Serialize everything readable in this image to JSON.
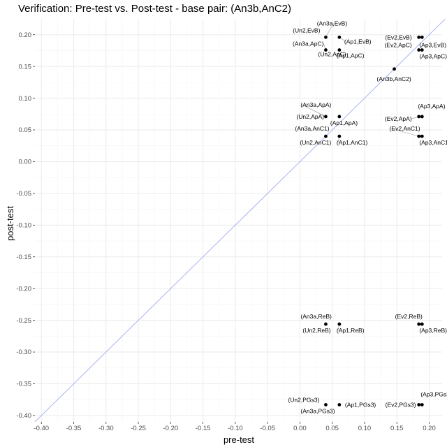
{
  "chart_data": {
    "type": "scatter",
    "title": "Verification: Pre-test vs. Post-test - base pair: (An3b,AnC2)",
    "xlabel": "pre-test",
    "ylabel": "post-test",
    "xlim": [
      -0.41,
      0.22
    ],
    "ylim": [
      -0.41,
      0.225
    ],
    "xticks": [
      -0.4,
      -0.35,
      -0.3,
      -0.25,
      -0.2,
      -0.15,
      -0.1,
      -0.05,
      0.0,
      0.05,
      0.1,
      0.15,
      0.2
    ],
    "yticks": [
      -0.4,
      -0.35,
      -0.3,
      -0.25,
      -0.2,
      -0.15,
      -0.1,
      -0.05,
      0.0,
      0.05,
      0.1,
      0.15,
      0.2
    ],
    "tick_labels_x": [
      "-0.40",
      "-0.35",
      "-0.30",
      "-0.25",
      "-0.20",
      "-0.15",
      "-0.10",
      "-0.05",
      "0.00",
      "0.05",
      "0.10",
      "0.15",
      "0.20"
    ],
    "tick_labels_y": [
      "-0.40",
      "-0.35",
      "-0.30",
      "-0.25",
      "-0.20",
      "-0.15",
      "-0.10",
      "-0.05",
      "0.00",
      "0.05",
      "0.10",
      "0.15",
      "0.20"
    ],
    "grid": true,
    "reference_line": "y = x",
    "colors": {
      "points": "#000000",
      "reference_line": "#aab4f0",
      "grid_major": "#ebebeb",
      "grid_minor": "#f5f5f5",
      "connector": "#999999"
    },
    "points": [
      {
        "label": "(An3a,EvB)",
        "x": 0.04,
        "y": 0.196
      },
      {
        "label": "(Un2,EvB)",
        "x": 0.04,
        "y": 0.196
      },
      {
        "label": "(Ap1,EvB)",
        "x": 0.061,
        "y": 0.196
      },
      {
        "label": "(An3a,ApC)",
        "x": 0.04,
        "y": 0.176
      },
      {
        "label": "(Un2,ApC)",
        "x": 0.04,
        "y": 0.176
      },
      {
        "label": "(Ap1,ApC)",
        "x": 0.061,
        "y": 0.176
      },
      {
        "label": "(Ev2,EvB)",
        "x": 0.184,
        "y": 0.196
      },
      {
        "label": "(Ap3,EvB)",
        "x": 0.189,
        "y": 0.196
      },
      {
        "label": "(Ev2,ApC)",
        "x": 0.184,
        "y": 0.176
      },
      {
        "label": "(Ap3,ApC)",
        "x": 0.189,
        "y": 0.176
      },
      {
        "label": "(An3b,AnC2)",
        "x": 0.146,
        "y": 0.146
      },
      {
        "label": "(An3a,ApA)",
        "x": 0.04,
        "y": 0.071
      },
      {
        "label": "(Un2,ApA)",
        "x": 0.04,
        "y": 0.071
      },
      {
        "label": "(Ap1,ApA)",
        "x": 0.061,
        "y": 0.071
      },
      {
        "label": "(An3a,AnC1)",
        "x": 0.04,
        "y": 0.04
      },
      {
        "label": "(Un2,AnC1)",
        "x": 0.04,
        "y": 0.04
      },
      {
        "label": "(Ap1,AnC1)",
        "x": 0.061,
        "y": 0.04
      },
      {
        "label": "(Ev2,ApA)",
        "x": 0.184,
        "y": 0.071
      },
      {
        "label": "(Ap3,ApA)",
        "x": 0.189,
        "y": 0.071
      },
      {
        "label": "(Ev2,AnC1)",
        "x": 0.184,
        "y": 0.04
      },
      {
        "label": "(Ap3,AnC1)",
        "x": 0.189,
        "y": 0.04
      },
      {
        "label": "(An3a,ReB)",
        "x": 0.04,
        "y": -0.256
      },
      {
        "label": "(Un2,ReB)",
        "x": 0.04,
        "y": -0.256
      },
      {
        "label": "(Ap1,ReB)",
        "x": 0.061,
        "y": -0.256
      },
      {
        "label": "(Ev2,ReB)",
        "x": 0.184,
        "y": -0.256
      },
      {
        "label": "(Ap3,ReB)",
        "x": 0.189,
        "y": -0.256
      },
      {
        "label": "(Un2,PGs3)",
        "x": 0.04,
        "y": -0.383
      },
      {
        "label": "(An3a,PGs3)",
        "x": 0.04,
        "y": -0.383
      },
      {
        "label": "(Ap1,PGs3)",
        "x": 0.061,
        "y": -0.383
      },
      {
        "label": "(Ev2,PGs3)",
        "x": 0.184,
        "y": -0.383
      },
      {
        "label": "(Ap3,PGs3)",
        "x": 0.189,
        "y": -0.383
      }
    ]
  }
}
